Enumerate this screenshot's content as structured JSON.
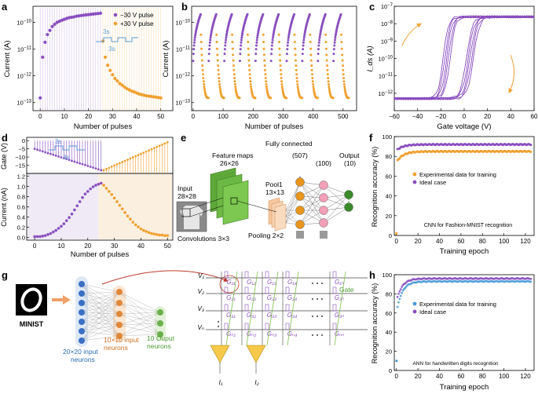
{
  "panels": {
    "a": {
      "letter": "a",
      "xlabel": "Number of pulses",
      "ylabel": "Current (A)",
      "yticks": [
        "10^-13",
        "10^-12",
        "10^-11",
        "10^-10"
      ],
      "xticks": [
        "0",
        "10",
        "20",
        "30",
        "40",
        "50"
      ],
      "legend": [
        "−30 V pulse",
        "+30 V pulse"
      ],
      "inset": [
        "3s",
        "3s"
      ]
    },
    "b": {
      "letter": "b",
      "xlabel": "Number of pulses",
      "ylabel": "Current (A)",
      "yticks": [
        "10^-13",
        "10^-12",
        "10^-11",
        "10^-10"
      ],
      "xticks": [
        "0",
        "100",
        "200",
        "300",
        "400",
        "500"
      ]
    },
    "c": {
      "letter": "c",
      "xlabel": "Gate voltage (V)",
      "ylabel": "I_ds (A)",
      "yticks": [
        "10^-12",
        "10^-11",
        "10^-10",
        "10^-9",
        "10^-8",
        "10^-7"
      ],
      "xticks": [
        "−60",
        "−40",
        "−20",
        "0",
        "20",
        "40",
        "60"
      ]
    },
    "d": {
      "letter": "d",
      "xlabel": "Number of pulses",
      "ylabel_top": "Gate (V)",
      "ylabel_bot": "Current (nA)",
      "yticks_top": [
        "−15",
        "−10",
        "−5",
        "0"
      ],
      "yticks_bot": [
        "0.0",
        "0.2",
        "0.4",
        "0.6",
        "0.8",
        "1.0",
        "1.2"
      ],
      "xticks": [
        "0",
        "10",
        "20",
        "30",
        "40",
        "50"
      ],
      "inset": [
        "3s",
        "3s"
      ]
    },
    "e": {
      "letter": "e",
      "input": "Input",
      "input_size": "28×28",
      "fmaps": "Feature maps",
      "fmaps_size": "26×26",
      "pool": "Pool1",
      "pool_size": "13×13",
      "fc": "Fully connected",
      "n1": "(507)",
      "n2": "(100)",
      "out": "Output",
      "n3": "(10)",
      "conv": "Convolutions 3×3",
      "pooling": "Pooling 2×2"
    },
    "f": {
      "letter": "f",
      "xlabel": "Training epoch",
      "ylabel": "Recognition accuracy (%)",
      "yticks": [
        "0",
        "20",
        "40",
        "60",
        "80",
        "100"
      ],
      "xticks": [
        "0",
        "20",
        "40",
        "60",
        "80",
        "100",
        "120"
      ],
      "legend": [
        "Experimental data for training",
        "Ideal case"
      ],
      "caption": "CNN for Fashion-MNIST recognition"
    },
    "g": {
      "letter": "g",
      "mnist": "MINIST",
      "in_label": "20×20 input neurons",
      "hid_label": "10×10 input neurons",
      "out_label": "10 Ouput neurons",
      "gate": "Gate",
      "v_labels": [
        "V₁",
        "V₂",
        "V₃",
        "Vₙ"
      ],
      "g_labels": [
        [
          "G₁₁",
          "G₁₂",
          "G₁₃",
          "G₁₄",
          "G₁ₙ"
        ],
        [
          "G₂₁",
          "G₂₂",
          "G₂₃",
          "G₂₄",
          "G₂ₙ"
        ],
        [
          "G₃₁",
          "G₃₂",
          "G₃₃",
          "G₃₄",
          "G₃ₙ"
        ],
        [
          "Gₙ₁",
          "Gₙ₂",
          "Gₙ₃",
          "Gₙ₄",
          "Gₙₙ"
        ]
      ],
      "i_labels": [
        "I₁",
        "I₂"
      ],
      "digit": "0"
    },
    "h": {
      "letter": "h",
      "xlabel": "Training epoch",
      "ylabel": "Recognition accuracy (%)",
      "yticks": [
        "0",
        "20",
        "40",
        "60",
        "80",
        "100"
      ],
      "xticks": [
        "0",
        "20",
        "40",
        "60",
        "80",
        "100",
        "120"
      ],
      "legend": [
        "Experimental data for training",
        "Ideal case"
      ],
      "caption": "ANN for handwritten digits recognition"
    }
  },
  "colors": {
    "purple": "#8a4fbf",
    "orange": "#f0a030",
    "blue_line": "#5a9bd5",
    "green": "#7cc04a",
    "dark_green": "#3a8a2a"
  },
  "chart_data": [
    {
      "id": "a",
      "type": "scatter",
      "title": "",
      "xlabel": "Number of pulses",
      "ylabel": "Current (A)",
      "yscale": "log",
      "ylim": [
        5e-14,
        4e-10
      ],
      "xlim": [
        -3,
        55
      ],
      "series": [
        {
          "name": "−30 V pulse",
          "x": [
            0,
            1,
            2,
            3,
            4,
            5,
            6,
            7,
            8,
            9,
            10,
            11,
            12,
            13,
            14,
            15,
            16,
            17,
            18,
            19,
            20,
            21,
            22,
            23,
            24,
            25
          ],
          "y": [
            1.5e-13,
            5e-12,
            1.8e-11,
            3.5e-11,
            5e-11,
            7e-11,
            8.5e-11,
            1e-10,
            1.1e-10,
            1.2e-10,
            1.3e-10,
            1.4e-10,
            1.5e-10,
            1.55e-10,
            1.6e-10,
            1.7e-10,
            1.75e-10,
            1.8e-10,
            1.85e-10,
            1.9e-10,
            1.95e-10,
            2e-10,
            2.05e-10,
            2.1e-10,
            2.15e-10,
            2.2e-10
          ]
        },
        {
          "name": "+30 V pulse",
          "x": [
            26,
            27,
            28,
            29,
            30,
            31,
            32,
            33,
            34,
            35,
            36,
            37,
            38,
            39,
            40,
            41,
            42,
            43,
            44,
            45,
            46,
            47,
            48,
            49,
            50
          ],
          "y": [
            2e-11,
            5e-12,
            2.5e-12,
            1.6e-12,
            1.1e-12,
            8e-13,
            6.5e-13,
            5.2e-13,
            4.5e-13,
            3.8e-13,
            3.3e-13,
            3e-13,
            2.7e-13,
            2.5e-13,
            2.3e-13,
            2.1e-13,
            2e-13,
            1.9e-13,
            1.8e-13,
            1.75e-13,
            1.7e-13,
            1.65e-13,
            1.6e-13,
            1.55e-13,
            1.5e-13
          ]
        }
      ]
    },
    {
      "id": "b",
      "type": "scatter",
      "xlabel": "Number of pulses",
      "ylabel": "Current (A)",
      "yscale": "log",
      "ylim": [
        5e-14,
        4e-10
      ],
      "xlim": [
        -5,
        545
      ],
      "cycles": 10,
      "pulses_per_half": 26,
      "series": [
        {
          "name": "depression",
          "peak": 2e-10,
          "floor": 1.5e-13
        },
        {
          "name": "potentiation"
        }
      ]
    },
    {
      "id": "c",
      "type": "line",
      "xlabel": "Gate voltage (V)",
      "ylabel": "I_ds (A)",
      "yscale": "log",
      "ylim": [
        1e-13,
        1e-07
      ],
      "xlim": [
        -60,
        60
      ],
      "cycles": 40,
      "curve": {
        "off": 5e-13,
        "on": 2.5e-08,
        "forward_vth": 5,
        "reverse_vth": -15
      }
    },
    {
      "id": "d",
      "type": "scatter",
      "xlabel": "Number of pulses",
      "ylabel": "Current (nA)",
      "ylim": [
        -0.05,
        1.25
      ],
      "xlim": [
        -3,
        52
      ],
      "gate_ylim": [
        -20,
        2
      ],
      "series": [
        {
          "name": "potentiation",
          "x": [
            0,
            1,
            2,
            3,
            4,
            5,
            6,
            7,
            8,
            9,
            10,
            11,
            12,
            13,
            14,
            15,
            16,
            17,
            18,
            19,
            20,
            21,
            22,
            23,
            24,
            25
          ],
          "y": [
            0.02,
            0.02,
            0.02,
            0.03,
            0.04,
            0.06,
            0.08,
            0.11,
            0.14,
            0.18,
            0.22,
            0.27,
            0.33,
            0.39,
            0.46,
            0.54,
            0.62,
            0.7,
            0.78,
            0.85,
            0.9,
            0.95,
            0.99,
            1.02,
            1.04,
            1.06
          ]
        },
        {
          "name": "depression",
          "x": [
            26,
            27,
            28,
            29,
            30,
            31,
            32,
            33,
            34,
            35,
            36,
            37,
            38,
            39,
            40,
            41,
            42,
            43,
            44,
            45,
            46,
            47,
            48,
            49,
            50
          ],
          "y": [
            1.02,
            0.96,
            0.9,
            0.84,
            0.77,
            0.7,
            0.63,
            0.56,
            0.49,
            0.42,
            0.36,
            0.3,
            0.25,
            0.21,
            0.17,
            0.14,
            0.12,
            0.1,
            0.08,
            0.07,
            0.06,
            0.05,
            0.05,
            0.04,
            0.04
          ]
        }
      ]
    },
    {
      "id": "f",
      "type": "scatter",
      "xlabel": "Training epoch",
      "ylabel": "Recognition accuracy (%)",
      "ylim": [
        0,
        100
      ],
      "xlim": [
        -2,
        128
      ],
      "series": [
        {
          "name": "Experimental data for training",
          "start": 74,
          "plateau": 85
        },
        {
          "name": "Ideal case",
          "start": 86,
          "plateau": 92
        }
      ]
    },
    {
      "id": "h",
      "type": "scatter",
      "xlabel": "Training epoch",
      "ylabel": "Recognition accuracy (%)",
      "ylim": [
        0,
        100
      ],
      "xlim": [
        -2,
        128
      ],
      "series": [
        {
          "name": "Experimental data for training",
          "start": 60,
          "plateau": 93
        },
        {
          "name": "Ideal case",
          "start": 72,
          "plateau": 96
        }
      ]
    }
  ]
}
